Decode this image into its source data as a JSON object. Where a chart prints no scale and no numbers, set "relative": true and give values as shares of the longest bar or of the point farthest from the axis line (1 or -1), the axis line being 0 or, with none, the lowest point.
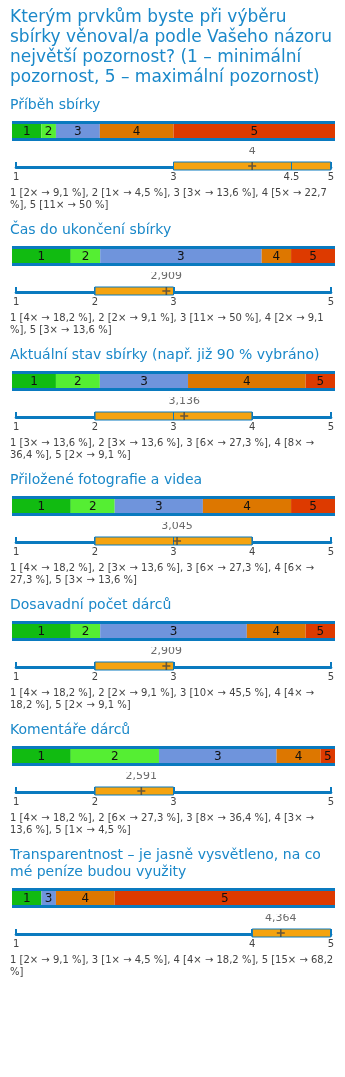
{
  "chart_data": [
    {
      "type": "bar",
      "orientation": "horizontal",
      "stacked": true,
      "relative": true,
      "title": "Kterým prvkům byste při výběru sbírky věnoval/a podle Vašeho názoru největší pozornost? (1 – minimální pozornost, 5 – maximální pozornost)",
      "subtitle": "Příběh sbírky",
      "categories": [
        null
      ],
      "series": [
        {
          "name": "1",
          "color": "#11bb11",
          "values": [
            0.091
          ]
        },
        {
          "name": "2",
          "color": "#55ee33",
          "values": [
            0.045
          ]
        },
        {
          "name": "3",
          "color": "#6f94dc",
          "values": [
            0.136
          ]
        },
        {
          "name": "4",
          "color": "#dd7700",
          "values": [
            0.228
          ]
        },
        {
          "name": "5",
          "color": "#dd3a00",
          "values": [
            0.5
          ]
        }
      ]
    },
    {
      "type": "box",
      "orientation": "horizontal",
      "categories": [
        null
      ],
      "color": "#f5a30f",
      "xlim": [
        1,
        5
      ],
      "xticks": [
        1,
        3,
        4.5,
        5
      ],
      "boxes": [
        {
          "low": 3,
          "q1": 3,
          "median": 4.5,
          "q3": 5,
          "high": 5,
          "mean": 4
        }
      ],
      "annotations": [
        "4",
        "1 [2× → 9,1 %], 2 [1× → 4,5 %], 3 [3× → 13,6 %], 4 [5× → 22,7 %], 5 [11× → 50 %]"
      ]
    },
    {
      "type": "bar",
      "orientation": "horizontal",
      "stacked": true,
      "relative": true,
      "title": "Čas do ukončení sbírky",
      "categories": [
        null
      ],
      "series": [
        {
          "name": "1",
          "color": "#11bb11",
          "values": [
            0.182
          ]
        },
        {
          "name": "2",
          "color": "#55ee33",
          "values": [
            0.091
          ]
        },
        {
          "name": "3",
          "color": "#6f94dc",
          "values": [
            0.5
          ]
        },
        {
          "name": "4",
          "color": "#dd7700",
          "values": [
            0.091
          ]
        },
        {
          "name": "5",
          "color": "#dd3a00",
          "values": [
            0.136
          ]
        }
      ]
    },
    {
      "type": "box",
      "orientation": "horizontal",
      "categories": [
        null
      ],
      "color": "#f5a30f",
      "xlim": [
        1,
        5
      ],
      "xticks": [
        1,
        2,
        3,
        5
      ],
      "boxes": [
        {
          "low": 2,
          "q1": 2,
          "median": 3,
          "q3": 3,
          "high": 3,
          "mean": 2.909
        }
      ],
      "annotations": [
        "2,909",
        "1 [4× → 18,2 %], 2 [2× → 9,1 %], 3 [11× → 50 %], 4 [2× → 9,1 %], 5 [3× → 13,6 %]"
      ]
    },
    {
      "type": "bar",
      "orientation": "horizontal",
      "stacked": true,
      "relative": true,
      "title": "Aktuální stav sbírky (např. již 90 % vybráno)",
      "categories": [
        null
      ],
      "series": [
        {
          "name": "1",
          "color": "#11bb11",
          "values": [
            0.136
          ]
        },
        {
          "name": "2",
          "color": "#55ee33",
          "values": [
            0.136
          ]
        },
        {
          "name": "3",
          "color": "#6f94dc",
          "values": [
            0.273
          ]
        },
        {
          "name": "4",
          "color": "#dd7700",
          "values": [
            0.364
          ]
        },
        {
          "name": "5",
          "color": "#dd3a00",
          "values": [
            0.091
          ]
        }
      ]
    },
    {
      "type": "box",
      "orientation": "horizontal",
      "categories": [
        null
      ],
      "color": "#f5a30f",
      "xlim": [
        1,
        5
      ],
      "xticks": [
        1,
        2,
        3,
        4,
        5
      ],
      "boxes": [
        {
          "low": 2,
          "q1": 2,
          "median": 3,
          "q3": 4,
          "high": 4,
          "mean": 3.136
        }
      ],
      "annotations": [
        "3,136",
        "1 [3× → 13,6 %], 2 [3× → 13,6 %], 3 [6× → 27,3 %], 4 [8× → 36,4 %], 5 [2× → 9,1 %]"
      ]
    },
    {
      "type": "bar",
      "orientation": "horizontal",
      "stacked": true,
      "relative": true,
      "title": "Přiložené fotografie a videa",
      "categories": [
        null
      ],
      "series": [
        {
          "name": "1",
          "color": "#11bb11",
          "values": [
            0.182
          ]
        },
        {
          "name": "2",
          "color": "#55ee33",
          "values": [
            0.136
          ]
        },
        {
          "name": "3",
          "color": "#6f94dc",
          "values": [
            0.273
          ]
        },
        {
          "name": "4",
          "color": "#dd7700",
          "values": [
            0.273
          ]
        },
        {
          "name": "5",
          "color": "#dd3a00",
          "values": [
            0.136
          ]
        }
      ]
    },
    {
      "type": "box",
      "orientation": "horizontal",
      "categories": [
        null
      ],
      "color": "#f5a30f",
      "xlim": [
        1,
        5
      ],
      "xticks": [
        1,
        2,
        3,
        4,
        5
      ],
      "boxes": [
        {
          "low": 2,
          "q1": 2,
          "median": 3,
          "q3": 4,
          "high": 4,
          "mean": 3.045
        }
      ],
      "annotations": [
        "3,045",
        "1 [4× → 18,2 %], 2 [3× → 13,6 %], 3 [6× → 27,3 %], 4 [6× → 27,3 %], 5 [3× → 13,6 %]"
      ]
    },
    {
      "type": "bar",
      "orientation": "horizontal",
      "stacked": true,
      "relative": true,
      "title": "Dosavadní počet dárců",
      "categories": [
        null
      ],
      "series": [
        {
          "name": "1",
          "color": "#11bb11",
          "values": [
            0.182
          ]
        },
        {
          "name": "2",
          "color": "#55ee33",
          "values": [
            0.091
          ]
        },
        {
          "name": "3",
          "color": "#6f94dc",
          "values": [
            0.454
          ]
        },
        {
          "name": "4",
          "color": "#dd7700",
          "values": [
            0.182
          ]
        },
        {
          "name": "5",
          "color": "#dd3a00",
          "values": [
            0.091
          ]
        }
      ]
    },
    {
      "type": "box",
      "orientation": "horizontal",
      "categories": [
        null
      ],
      "color": "#f5a30f",
      "xlim": [
        1,
        5
      ],
      "xticks": [
        1,
        2,
        3,
        5
      ],
      "boxes": [
        {
          "low": 2,
          "q1": 2,
          "median": 3,
          "q3": 3,
          "high": 3,
          "mean": 2.909
        }
      ],
      "annotations": [
        "2,909",
        "1 [4× → 18,2 %], 2 [2× → 9,1 %], 3 [10× → 45,5 %], 4 [4× → 18,2 %], 5 [2× → 9,1 %]"
      ]
    },
    {
      "type": "bar",
      "orientation": "horizontal",
      "stacked": true,
      "relative": true,
      "title": "Komentáře dárců",
      "categories": [
        null
      ],
      "series": [
        {
          "name": "1",
          "color": "#11bb11",
          "values": [
            0.182
          ]
        },
        {
          "name": "2",
          "color": "#55ee33",
          "values": [
            0.273
          ]
        },
        {
          "name": "3",
          "color": "#6f94dc",
          "values": [
            0.364
          ]
        },
        {
          "name": "4",
          "color": "#dd7700",
          "values": [
            0.136
          ]
        },
        {
          "name": "5",
          "color": "#dd3a00",
          "values": [
            0.045
          ]
        }
      ]
    },
    {
      "type": "box",
      "orientation": "horizontal",
      "categories": [
        null
      ],
      "color": "#f5a30f",
      "xlim": [
        1,
        5
      ],
      "xticks": [
        1,
        2,
        3,
        5
      ],
      "boxes": [
        {
          "low": 2,
          "q1": 2,
          "median": 3,
          "q3": 3,
          "high": 3,
          "mean": 2.591
        }
      ],
      "annotations": [
        "2,591",
        "1 [4× → 18,2 %], 2 [6× → 27,3 %], 3 [8× → 36,4 %], 4 [3× → 13,6 %], 5 [1× → 4,5 %]"
      ]
    },
    {
      "type": "bar",
      "orientation": "horizontal",
      "stacked": true,
      "relative": true,
      "title": "Transparentnost – je jasně vysvětleno, na co mé peníze budou využity",
      "categories": [
        null
      ],
      "series": [
        {
          "name": "1",
          "color": "#11bb11",
          "values": [
            0.091
          ]
        },
        {
          "name": "3",
          "color": "#6f94dc",
          "values": [
            0.045
          ]
        },
        {
          "name": "4",
          "color": "#dd7700",
          "values": [
            0.182
          ]
        },
        {
          "name": "5",
          "color": "#dd3a00",
          "values": [
            0.682
          ]
        }
      ]
    },
    {
      "type": "box",
      "orientation": "horizontal",
      "categories": [
        null
      ],
      "color": "#f5a30f",
      "xlim": [
        1,
        5
      ],
      "xticks": [
        1,
        4,
        5
      ],
      "boxes": [
        {
          "low": 4,
          "q1": 4,
          "median": 5,
          "q3": 5,
          "high": 5,
          "mean": 4.364
        }
      ],
      "annotations": [
        "4,364",
        "1 [2× → 9,1 %], 3 [1× → 4,5 %], 4 [4× → 18,2 %], 5 [15× → 68,2 %]"
      ]
    }
  ]
}
